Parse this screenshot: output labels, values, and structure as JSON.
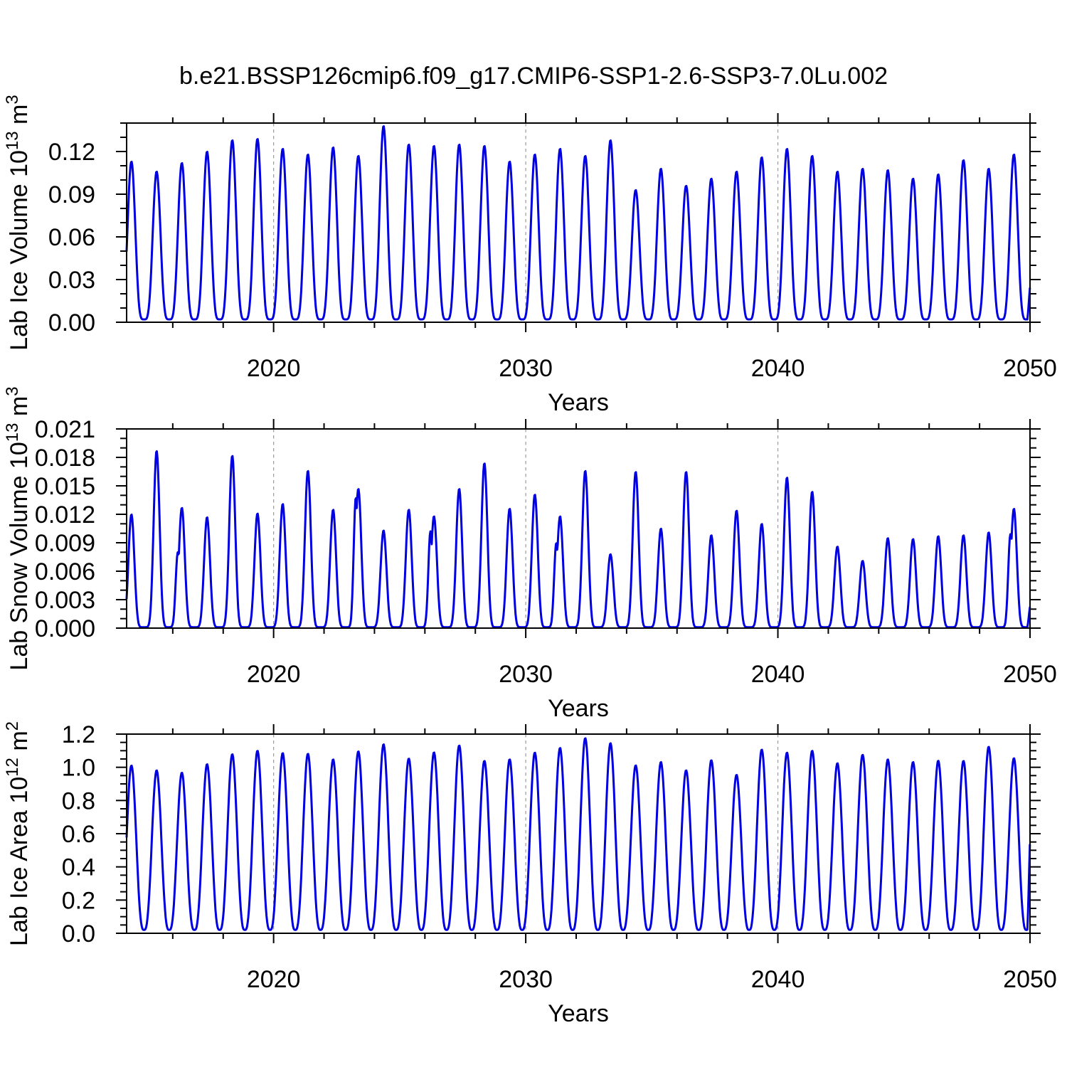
{
  "title": "b.e21.BSSP126cmip6.f09_g17.CMIP6-SSP1-2.6-SSP3-7.0Lu.002",
  "colors": {
    "line": "#0000e0",
    "grid": "#9a9a9a",
    "frame": "#000000",
    "text": "#000000"
  },
  "chart_data": [
    {
      "type": "line",
      "panel": "ice-volume",
      "ylabel_parts": {
        "pre": "Lab Ice Volume 10",
        "exp": "13",
        "mid": " m",
        "exp2": "3"
      },
      "xlabel": "Years",
      "xlim": [
        2014.17,
        2050
      ],
      "ylim": [
        0,
        0.14
      ],
      "ytick_major": 0.03,
      "ytick_minor": 0.01,
      "ytick_labels": [
        "0.00",
        "0.03",
        "0.06",
        "0.09",
        "0.12"
      ],
      "xticks": [
        2020,
        2030,
        2040,
        2050
      ],
      "xtick_labels": [
        "2020",
        "2030",
        "2040",
        "2050"
      ],
      "xminor_start": 2016,
      "xminor_step": 2,
      "grid_x": [
        2020,
        2030,
        2040
      ],
      "legend": "none",
      "years": [
        2014,
        2015,
        2016,
        2017,
        2018,
        2019,
        2020,
        2021,
        2022,
        2023,
        2024,
        2025,
        2026,
        2027,
        2028,
        2029,
        2030,
        2031,
        2032,
        2033,
        2034,
        2035,
        2036,
        2037,
        2038,
        2039,
        2040,
        2041,
        2042,
        2043,
        2044,
        2045,
        2046,
        2047,
        2048,
        2049
      ],
      "annual_max": [
        0.113,
        0.106,
        0.112,
        0.12,
        0.128,
        0.129,
        0.122,
        0.118,
        0.123,
        0.117,
        0.138,
        0.125,
        0.124,
        0.125,
        0.124,
        0.113,
        0.118,
        0.122,
        0.117,
        0.128,
        0.093,
        0.108,
        0.096,
        0.101,
        0.106,
        0.116,
        0.122,
        0.117,
        0.106,
        0.108,
        0.107,
        0.101,
        0.104,
        0.114,
        0.108,
        0.118
      ],
      "baseline": 0.002,
      "peak_phase": 0.36,
      "peak_sharpness": 2.2,
      "edge_end_value": 0.025,
      "shoulders": []
    },
    {
      "type": "line",
      "panel": "snow-volume",
      "ylabel_parts": {
        "pre": "Lab Snow Volume 10",
        "exp": "13",
        "mid": " m",
        "exp2": "3"
      },
      "xlabel": "Years",
      "xlim": [
        2014.17,
        2050
      ],
      "ylim": [
        0,
        0.021
      ],
      "ytick_major": 0.003,
      "ytick_minor": 0.001,
      "ytick_labels": [
        "0.000",
        "0.003",
        "0.006",
        "0.009",
        "0.012",
        "0.015",
        "0.018",
        "0.021"
      ],
      "xticks": [
        2020,
        2030,
        2040,
        2050
      ],
      "xtick_labels": [
        "2020",
        "2030",
        "2040",
        "2050"
      ],
      "xminor_start": 2016,
      "xminor_step": 2,
      "grid_x": [
        2020,
        2030,
        2040
      ],
      "legend": "none",
      "years": [
        2014,
        2015,
        2016,
        2017,
        2018,
        2019,
        2020,
        2021,
        2022,
        2023,
        2024,
        2025,
        2026,
        2027,
        2028,
        2029,
        2030,
        2031,
        2032,
        2033,
        2034,
        2035,
        2036,
        2037,
        2038,
        2039,
        2040,
        2041,
        2042,
        2043,
        2044,
        2045,
        2046,
        2047,
        2048,
        2049
      ],
      "annual_max": [
        0.012,
        0.0187,
        0.0127,
        0.0117,
        0.0182,
        0.0121,
        0.0131,
        0.0166,
        0.0125,
        0.0147,
        0.0103,
        0.0125,
        0.0118,
        0.0147,
        0.0174,
        0.0126,
        0.0141,
        0.0118,
        0.0166,
        0.0078,
        0.0165,
        0.0105,
        0.0165,
        0.0098,
        0.0124,
        0.011,
        0.0159,
        0.0144,
        0.0086,
        0.0071,
        0.0095,
        0.0094,
        0.0097,
        0.0098,
        0.0101,
        0.0126
      ],
      "baseline": 0.0001,
      "peak_phase": 0.36,
      "peak_sharpness": 3.6,
      "edge_end_value": 0.0023,
      "shoulders": [
        [
          2,
          -0.16,
          0.008
        ],
        [
          9,
          -0.1,
          0.0138
        ],
        [
          12,
          -0.14,
          0.0102
        ],
        [
          17,
          -0.15,
          0.009
        ],
        [
          35,
          -0.14,
          0.0099
        ]
      ]
    },
    {
      "type": "line",
      "panel": "ice-area",
      "ylabel_parts": {
        "pre": "Lab Ice Area 10",
        "exp": "12",
        "mid": " m",
        "exp2": "2"
      },
      "xlabel": "Years",
      "xlim": [
        2014.17,
        2050
      ],
      "ylim": [
        0,
        1.2
      ],
      "ytick_major": 0.2,
      "ytick_minor": 0.05,
      "ytick_labels": [
        "0.0",
        "0.2",
        "0.4",
        "0.6",
        "0.8",
        "1.0",
        "1.2"
      ],
      "xticks": [
        2020,
        2030,
        2040,
        2050
      ],
      "xtick_labels": [
        "2020",
        "2030",
        "2040",
        "2050"
      ],
      "xminor_start": 2016,
      "xminor_step": 2,
      "grid_x": [
        2020,
        2030,
        2040
      ],
      "legend": "none",
      "years": [
        2014,
        2015,
        2016,
        2017,
        2018,
        2019,
        2020,
        2021,
        2022,
        2023,
        2024,
        2025,
        2026,
        2027,
        2028,
        2029,
        2030,
        2031,
        2032,
        2033,
        2034,
        2035,
        2036,
        2037,
        2038,
        2039,
        2040,
        2041,
        2042,
        2043,
        2044,
        2045,
        2046,
        2047,
        2048,
        2049
      ],
      "annual_max": [
        1.011,
        0.982,
        0.968,
        1.019,
        1.079,
        1.1,
        1.086,
        1.082,
        1.048,
        1.096,
        1.139,
        1.053,
        1.09,
        1.132,
        1.039,
        1.048,
        1.089,
        1.117,
        1.176,
        1.146,
        1.012,
        1.032,
        0.982,
        1.043,
        0.955,
        1.107,
        1.089,
        1.1,
        1.025,
        1.076,
        1.048,
        1.032,
        1.04,
        1.039,
        1.124,
        1.055
      ],
      "baseline": 0.02,
      "peak_phase": 0.36,
      "peak_sharpness": 1.5,
      "edge_end_value": 0.56,
      "shoulders": []
    }
  ]
}
